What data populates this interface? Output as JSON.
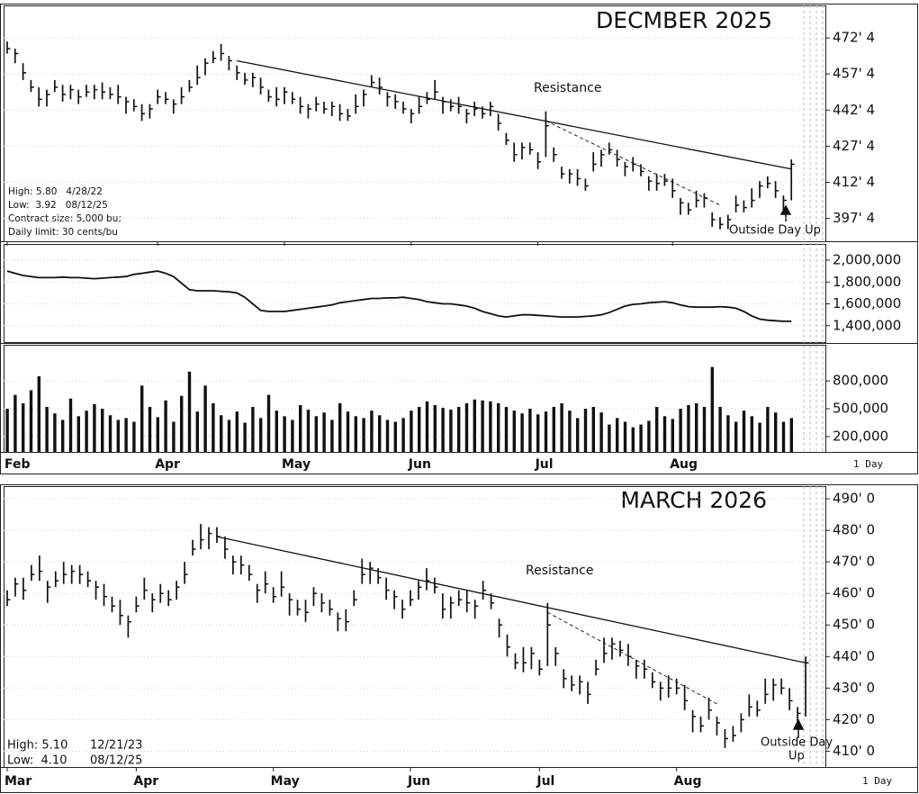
{
  "chart_data": [
    {
      "type": "ohlc",
      "title": "DECMBER 2025",
      "title_color": "#1f3864",
      "color": "#111111",
      "grid": true,
      "categories": [
        "Feb",
        null,
        null,
        null,
        null,
        null,
        null,
        null,
        null,
        null,
        null,
        null,
        null,
        null,
        null,
        null,
        null,
        null,
        null,
        "Apr",
        null,
        null,
        null,
        null,
        null,
        null,
        null,
        null,
        null,
        null,
        null,
        null,
        null,
        null,
        null,
        "May",
        null,
        null,
        null,
        null,
        null,
        null,
        null,
        null,
        null,
        null,
        null,
        null,
        null,
        null,
        null,
        "Jun",
        null,
        null,
        null,
        null,
        null,
        null,
        null,
        null,
        null,
        null,
        null,
        null,
        null,
        null,
        null,
        "Jul",
        null,
        null,
        null,
        null,
        null,
        null,
        null,
        null,
        null,
        null,
        null,
        null,
        null,
        null,
        null,
        null,
        "Aug",
        null,
        null,
        null,
        null,
        null,
        null,
        null,
        null,
        null,
        null,
        null,
        null,
        null,
        null,
        null
      ],
      "high": [
        471,
        468,
        462,
        455,
        452,
        451,
        455,
        453,
        453,
        451,
        453,
        453,
        454,
        452,
        453,
        448,
        447,
        445,
        445,
        451,
        450,
        447,
        452,
        455,
        461,
        464,
        467,
        470,
        465,
        461,
        458,
        458,
        456,
        451,
        452,
        452,
        450,
        448,
        445,
        448,
        446,
        446,
        445,
        443,
        449,
        451,
        457,
        456,
        450,
        449,
        446,
        443,
        448,
        450,
        455,
        448,
        447,
        448,
        443,
        446,
        444,
        446,
        441,
        433,
        429,
        429,
        429,
        425,
        442,
        427,
        419,
        418,
        418,
        414,
        425,
        426,
        429,
        426,
        421,
        423,
        420,
        415,
        416,
        416,
        414,
        406,
        404,
        409,
        408,
        400,
        398,
        399,
        407,
        405,
        410,
        413,
        415,
        413,
        407,
        422
      ],
      "low": [
        466,
        462,
        455,
        450,
        444,
        444,
        450,
        446,
        447,
        445,
        448,
        447,
        447,
        447,
        445,
        441,
        442,
        438,
        439,
        445,
        445,
        441,
        445,
        450,
        453,
        457,
        462,
        463,
        459,
        455,
        453,
        452,
        449,
        446,
        444,
        445,
        445,
        441,
        439,
        442,
        441,
        440,
        438,
        438,
        441,
        444,
        452,
        449,
        444,
        443,
        441,
        437,
        441,
        445,
        447,
        441,
        442,
        441,
        437,
        440,
        439,
        440,
        434,
        428,
        421,
        422,
        424,
        418,
        423,
        421,
        414,
        412,
        411,
        409,
        417,
        419,
        424,
        419,
        415,
        417,
        415,
        409,
        409,
        411,
        406,
        399,
        399,
        402,
        402,
        394,
        393,
        393,
        400,
        400,
        402,
        406,
        410,
        406,
        401,
        405
      ],
      "close": [
        468,
        466,
        458,
        452,
        447,
        449,
        452,
        449,
        451,
        448,
        450,
        451,
        450,
        449,
        448,
        446,
        444,
        441,
        443,
        448,
        447,
        445,
        448,
        452,
        456,
        462,
        464,
        466,
        463,
        458,
        455,
        456,
        452,
        448,
        447,
        450,
        447,
        444,
        443,
        445,
        443,
        444,
        441,
        440,
        444,
        449,
        454,
        452,
        448,
        446,
        443,
        441,
        444,
        447,
        450,
        446,
        444,
        444,
        441,
        443,
        441,
        444,
        437,
        430,
        424,
        427,
        426,
        421,
        436,
        424,
        416,
        416,
        414,
        411,
        420,
        424,
        426,
        422,
        419,
        420,
        417,
        413,
        412,
        413,
        409,
        404,
        401,
        405,
        406,
        397,
        395,
        397,
        403,
        402,
        405,
        411,
        412,
        409,
        405,
        420
      ],
      "ylim": [
        388,
        486
      ],
      "yticks": [
        {
          "value": 397.5,
          "label": "397' 4"
        },
        {
          "value": 412.5,
          "label": "412' 4"
        },
        {
          "value": 427.5,
          "label": "427' 4"
        },
        {
          "value": 442.5,
          "label": "442' 4"
        },
        {
          "value": 457.5,
          "label": "457' 4"
        },
        {
          "value": 472.5,
          "label": "472' 4"
        }
      ],
      "trendlines": [
        {
          "style": "solid",
          "start": [
            29,
            463
          ],
          "end": [
            99,
            418
          ]
        },
        {
          "style": "dashed",
          "start": [
            68,
            438
          ],
          "end": [
            90,
            403
          ]
        }
      ],
      "annotations": {
        "resistance": "Resistance",
        "signal": [
          "Outside Day Up"
        ]
      },
      "info": [
        [
          "High: 5.80   4/28/22"
        ],
        [
          "Low:  3.92   08/12/25"
        ],
        [
          "Contract size: 5,000 bu;"
        ],
        [
          "Daily limit: 30 cents/bu"
        ]
      ],
      "interval": "1 Day"
    },
    {
      "type": "line",
      "color": "#111111",
      "grid": true,
      "values": [
        1900000,
        1880000,
        1860000,
        1850000,
        1840000,
        1840000,
        1840000,
        1845000,
        1840000,
        1840000,
        1835000,
        1830000,
        1835000,
        1840000,
        1845000,
        1850000,
        1870000,
        1880000,
        1890000,
        1900000,
        1880000,
        1850000,
        1790000,
        1730000,
        1720000,
        1720000,
        1720000,
        1715000,
        1710000,
        1700000,
        1660000,
        1600000,
        1540000,
        1530000,
        1530000,
        1530000,
        1540000,
        1550000,
        1560000,
        1570000,
        1580000,
        1590000,
        1610000,
        1620000,
        1630000,
        1640000,
        1650000,
        1650000,
        1655000,
        1655000,
        1660000,
        1650000,
        1640000,
        1620000,
        1610000,
        1600000,
        1600000,
        1590000,
        1580000,
        1560000,
        1530000,
        1510000,
        1490000,
        1480000,
        1490000,
        1500000,
        1500000,
        1495000,
        1490000,
        1485000,
        1480000,
        1480000,
        1480000,
        1485000,
        1490000,
        1500000,
        1520000,
        1550000,
        1580000,
        1595000,
        1600000,
        1610000,
        1615000,
        1620000,
        1610000,
        1590000,
        1575000,
        1570000,
        1570000,
        1570000,
        1575000,
        1570000,
        1560000,
        1530000,
        1490000,
        1460000,
        1450000,
        1445000,
        1440000,
        1440000
      ],
      "ylim": [
        1250000,
        2140000
      ],
      "yticks": [
        {
          "value": 1400000,
          "label": "1,400,000"
        },
        {
          "value": 1600000,
          "label": "1,600,000"
        },
        {
          "value": 1800000,
          "label": "1,800,000"
        },
        {
          "value": 2000000,
          "label": "2,000,000"
        }
      ]
    },
    {
      "type": "bar",
      "color": "#111111",
      "grid": true,
      "values": [
        500000,
        650000,
        560000,
        700000,
        850000,
        520000,
        450000,
        380000,
        610000,
        420000,
        480000,
        550000,
        500000,
        430000,
        380000,
        400000,
        360000,
        750000,
        520000,
        410000,
        590000,
        360000,
        640000,
        900000,
        470000,
        750000,
        560000,
        430000,
        380000,
        470000,
        350000,
        520000,
        400000,
        650000,
        480000,
        420000,
        380000,
        540000,
        490000,
        420000,
        460000,
        380000,
        560000,
        470000,
        420000,
        400000,
        480000,
        430000,
        380000,
        360000,
        400000,
        480000,
        520000,
        580000,
        540000,
        510000,
        490000,
        520000,
        560000,
        600000,
        590000,
        580000,
        560000,
        520000,
        480000,
        450000,
        500000,
        440000,
        470000,
        520000,
        560000,
        480000,
        400000,
        500000,
        520000,
        460000,
        330000,
        400000,
        360000,
        300000,
        330000,
        370000,
        520000,
        420000,
        390000,
        500000,
        540000,
        560000,
        520000,
        950000,
        520000,
        430000,
        360000,
        480000,
        420000,
        350000,
        520000,
        460000,
        360000,
        400000
      ],
      "ylim": [
        35000,
        1180000
      ],
      "yticks": [
        {
          "value": 200000,
          "label": "200,000"
        },
        {
          "value": 500000,
          "label": "500,000"
        },
        {
          "value": 800000,
          "label": "800,000"
        }
      ]
    },
    {
      "type": "ohlc",
      "title": "MARCH 2026",
      "title_color": "#1f3864",
      "color": "#111111",
      "grid": true,
      "categories": [
        "Mar",
        null,
        null,
        null,
        null,
        null,
        null,
        null,
        null,
        null,
        null,
        null,
        null,
        null,
        null,
        null,
        "Apr",
        null,
        null,
        null,
        null,
        null,
        null,
        null,
        null,
        null,
        null,
        null,
        null,
        null,
        null,
        null,
        null,
        "May",
        null,
        null,
        null,
        null,
        null,
        null,
        null,
        null,
        null,
        null,
        null,
        null,
        null,
        null,
        null,
        null,
        "Jun",
        null,
        null,
        null,
        null,
        null,
        null,
        null,
        null,
        null,
        null,
        null,
        null,
        null,
        null,
        null,
        "Jul",
        null,
        null,
        null,
        null,
        null,
        null,
        null,
        null,
        null,
        null,
        null,
        null,
        null,
        null,
        null,
        null,
        "Aug",
        null,
        null,
        null,
        null,
        null,
        null,
        null,
        null,
        null,
        null,
        null,
        null,
        null,
        null,
        null,
        null
      ],
      "high": [
        461,
        465,
        465,
        469,
        472,
        464,
        467,
        470,
        469,
        469,
        467,
        464,
        463,
        459,
        458,
        453,
        459,
        465,
        460,
        463,
        461,
        464,
        470,
        477,
        482,
        481,
        481,
        478,
        472,
        472,
        469,
        463,
        467,
        462,
        467,
        460,
        458,
        458,
        462,
        460,
        458,
        454,
        455,
        461,
        471,
        470,
        468,
        465,
        461,
        458,
        461,
        464,
        468,
        465,
        460,
        459,
        461,
        461,
        458,
        464,
        460,
        452,
        447,
        441,
        443,
        443,
        439,
        457,
        443,
        436,
        434,
        434,
        432,
        439,
        446,
        446,
        445,
        444,
        439,
        439,
        435,
        432,
        434,
        433,
        431,
        423,
        421,
        427,
        421,
        417,
        418,
        422,
        428,
        426,
        433,
        433,
        433,
        430,
        424,
        440
      ],
      "low": [
        456,
        459,
        458,
        464,
        464,
        457,
        462,
        463,
        463,
        463,
        462,
        458,
        456,
        454,
        450,
        446,
        454,
        458,
        454,
        457,
        456,
        458,
        463,
        472,
        474,
        474,
        476,
        471,
        466,
        466,
        464,
        457,
        460,
        457,
        459,
        453,
        453,
        451,
        456,
        454,
        453,
        448,
        448,
        456,
        463,
        463,
        463,
        458,
        455,
        452,
        456,
        458,
        461,
        460,
        452,
        452,
        456,
        454,
        452,
        458,
        455,
        446,
        440,
        436,
        435,
        436,
        434,
        437,
        437,
        430,
        429,
        428,
        425,
        434,
        438,
        439,
        440,
        437,
        433,
        433,
        430,
        426,
        427,
        428,
        423,
        416,
        416,
        420,
        415,
        411,
        413,
        416,
        421,
        421,
        425,
        426,
        428,
        423,
        418,
        421
      ],
      "close": [
        458,
        463,
        461,
        466,
        467,
        462,
        464,
        466,
        467,
        466,
        464,
        462,
        459,
        456,
        453,
        451,
        456,
        461,
        458,
        460,
        458,
        462,
        466,
        474,
        477,
        479,
        478,
        474,
        470,
        469,
        466,
        461,
        463,
        459,
        462,
        458,
        455,
        454,
        460,
        457,
        455,
        452,
        451,
        458,
        466,
        468,
        465,
        461,
        459,
        455,
        458,
        462,
        464,
        462,
        455,
        457,
        458,
        457,
        456,
        461,
        457,
        450,
        443,
        438,
        438,
        441,
        436,
        450,
        441,
        433,
        431,
        432,
        428,
        436,
        441,
        444,
        442,
        440,
        437,
        436,
        432,
        430,
        430,
        430,
        426,
        421,
        418,
        423,
        419,
        414,
        415,
        420,
        424,
        423,
        428,
        431,
        430,
        426,
        422,
        438
      ],
      "ylim": [
        405,
        494
      ],
      "yticks": [
        {
          "value": 410,
          "label": "410' 0"
        },
        {
          "value": 420,
          "label": "420' 0"
        },
        {
          "value": 430,
          "label": "430' 0"
        },
        {
          "value": 440,
          "label": "440' 0"
        },
        {
          "value": 450,
          "label": "450' 0"
        },
        {
          "value": 460,
          "label": "460' 0"
        },
        {
          "value": 470,
          "label": "470' 0"
        },
        {
          "value": 480,
          "label": "480' 0"
        },
        {
          "value": 490,
          "label": "490' 0"
        }
      ],
      "trendlines": [
        {
          "style": "solid",
          "start": [
            26,
            478
          ],
          "end": [
            99,
            438
          ]
        },
        {
          "style": "dashed",
          "start": [
            67,
            454
          ],
          "end": [
            88,
            425
          ]
        }
      ],
      "annotations": {
        "resistance": "Resistance",
        "signal": [
          "Outside Day",
          "Up"
        ]
      },
      "info": [
        [
          "High: 5.10",
          "12/21/23"
        ],
        [
          "Low:  4.10",
          "08/12/25"
        ]
      ],
      "interval": "1 Day"
    }
  ]
}
